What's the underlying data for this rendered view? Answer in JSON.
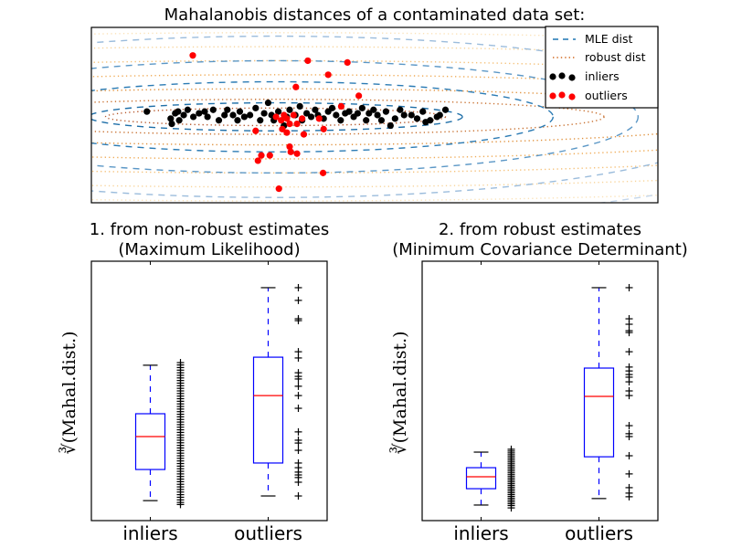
{
  "chart_data": [
    {
      "type": "scatter",
      "title": "Mahalanobis distances of a contaminated data set:",
      "xlabel": "",
      "ylabel": "",
      "xlim": [
        0,
        1
      ],
      "ylim": [
        0,
        1
      ],
      "grid": false,
      "legend": {
        "placement": "top-right",
        "entries": [
          {
            "label": "MLE dist",
            "style": "dashed-line",
            "color": "#1f77b4"
          },
          {
            "label": "robust dist",
            "style": "dotted-line",
            "color": "#d2691e"
          },
          {
            "label": "inliers",
            "style": "markers",
            "color": "#000000"
          },
          {
            "label": "outliers",
            "style": "markers",
            "color": "#ff0000"
          }
        ]
      },
      "contours": {
        "center": [
          0.325,
          0.49
        ],
        "mle_levels": [
          {
            "rx": 0.33,
            "ry": 0.08
          },
          {
            "rx": 0.49,
            "ry": 0.2
          },
          {
            "rx": 0.64,
            "ry": 0.32
          },
          {
            "rx": 0.82,
            "ry": 0.46
          },
          {
            "rx": 1.0,
            "ry": 0.6
          }
        ],
        "robust_levels": [
          {
            "rx": 0.3,
            "ry": 0.05
          },
          {
            "rx": 0.58,
            "ry": 0.1
          },
          {
            "rx": 0.85,
            "ry": 0.16
          },
          {
            "rx": 1.1,
            "ry": 0.24
          },
          {
            "rx": 1.35,
            "ry": 0.32
          },
          {
            "rx": 1.6,
            "ry": 0.4
          },
          {
            "rx": 1.85,
            "ry": 0.48
          },
          {
            "rx": 2.1,
            "ry": 0.56
          }
        ]
      },
      "series": [
        {
          "name": "inliers",
          "color": "#000000",
          "points": [
            [
              0.098,
              0.52
            ],
            [
              0.14,
              0.48
            ],
            [
              0.142,
              0.45
            ],
            [
              0.148,
              0.51
            ],
            [
              0.153,
              0.52
            ],
            [
              0.155,
              0.47
            ],
            [
              0.163,
              0.5
            ],
            [
              0.17,
              0.53
            ],
            [
              0.18,
              0.49
            ],
            [
              0.19,
              0.51
            ],
            [
              0.2,
              0.52
            ],
            [
              0.205,
              0.49
            ],
            [
              0.215,
              0.53
            ],
            [
              0.225,
              0.47
            ],
            [
              0.235,
              0.5
            ],
            [
              0.24,
              0.53
            ],
            [
              0.25,
              0.5
            ],
            [
              0.258,
              0.47
            ],
            [
              0.262,
              0.52
            ],
            [
              0.27,
              0.49
            ],
            [
              0.28,
              0.5
            ],
            [
              0.29,
              0.54
            ],
            [
              0.298,
              0.47
            ],
            [
              0.305,
              0.51
            ],
            [
              0.312,
              0.57
            ],
            [
              0.318,
              0.5
            ],
            [
              0.322,
              0.47
            ],
            [
              0.33,
              0.52
            ],
            [
              0.34,
              0.44
            ],
            [
              0.345,
              0.49
            ],
            [
              0.35,
              0.53
            ],
            [
              0.36,
              0.5
            ],
            [
              0.368,
              0.55
            ],
            [
              0.372,
              0.47
            ],
            [
              0.38,
              0.51
            ],
            [
              0.388,
              0.49
            ],
            [
              0.395,
              0.53
            ],
            [
              0.4,
              0.5
            ],
            [
              0.41,
              0.48
            ],
            [
              0.418,
              0.52
            ],
            [
              0.425,
              0.54
            ],
            [
              0.432,
              0.5
            ],
            [
              0.44,
              0.47
            ],
            [
              0.448,
              0.51
            ],
            [
              0.455,
              0.52
            ],
            [
              0.463,
              0.49
            ],
            [
              0.47,
              0.51
            ],
            [
              0.478,
              0.54
            ],
            [
              0.485,
              0.47
            ],
            [
              0.49,
              0.51
            ],
            [
              0.498,
              0.53
            ],
            [
              0.505,
              0.5
            ],
            [
              0.512,
              0.47
            ],
            [
              0.52,
              0.52
            ],
            [
              0.528,
              0.44
            ],
            [
              0.536,
              0.48
            ],
            [
              0.545,
              0.53
            ],
            [
              0.552,
              0.5
            ],
            [
              0.565,
              0.5
            ],
            [
              0.575,
              0.48
            ],
            [
              0.585,
              0.52
            ],
            [
              0.598,
              0.47
            ],
            [
              0.61,
              0.49
            ],
            [
              0.625,
              0.53
            ],
            [
              0.59,
              0.46
            ],
            [
              0.615,
              0.5
            ]
          ]
        },
        {
          "name": "outliers",
          "color": "#ff0000",
          "points": [
            [
              0.179,
              0.84
            ],
            [
              0.382,
              0.81
            ],
            [
              0.452,
              0.8
            ],
            [
              0.418,
              0.73
            ],
            [
              0.361,
              0.66
            ],
            [
              0.472,
              0.61
            ],
            [
              0.441,
              0.55
            ],
            [
              0.326,
              0.49
            ],
            [
              0.335,
              0.47
            ],
            [
              0.34,
              0.5
            ],
            [
              0.345,
              0.48
            ],
            [
              0.35,
              0.45
            ],
            [
              0.357,
              0.5
            ],
            [
              0.363,
              0.45
            ],
            [
              0.372,
              0.48
            ],
            [
              0.402,
              0.48
            ],
            [
              0.337,
              0.42
            ],
            [
              0.345,
              0.4
            ],
            [
              0.375,
              0.39
            ],
            [
              0.41,
              0.42
            ],
            [
              0.29,
              0.41
            ],
            [
              0.35,
              0.32
            ],
            [
              0.352,
              0.29
            ],
            [
              0.363,
              0.28
            ],
            [
              0.315,
              0.27
            ],
            [
              0.3,
              0.27
            ],
            [
              0.294,
              0.24
            ],
            [
              0.409,
              0.17
            ],
            [
              0.331,
              0.08
            ]
          ]
        }
      ]
    },
    {
      "type": "box",
      "title": "1. from non-robust estimates\n(Maximum Likelihood)",
      "title_lines": [
        "1. from non-robust estimates",
        "(Maximum Likelihood)"
      ],
      "ylabel": "∛(Mahal.dist.)",
      "categories": [
        "inliers",
        "outliers"
      ],
      "ylim": [
        0,
        1
      ],
      "grid": false,
      "boxes": [
        {
          "name": "inliers",
          "whisker_low": 0.077,
          "q1": 0.197,
          "median": 0.324,
          "q3": 0.412,
          "whisker_high": 0.599
        },
        {
          "name": "outliers",
          "whisker_low": 0.095,
          "q1": 0.222,
          "median": 0.482,
          "q3": 0.63,
          "whisker_high": 0.898
        }
      ],
      "strip_points": [
        {
          "name": "inliers",
          "values": [
            0.609,
            0.6,
            0.59,
            0.58,
            0.57,
            0.56,
            0.55,
            0.54,
            0.53,
            0.52,
            0.51,
            0.5,
            0.49,
            0.48,
            0.47,
            0.46,
            0.45,
            0.44,
            0.43,
            0.42,
            0.41,
            0.4,
            0.39,
            0.38,
            0.37,
            0.36,
            0.35,
            0.34,
            0.33,
            0.32,
            0.31,
            0.3,
            0.29,
            0.28,
            0.27,
            0.26,
            0.25,
            0.24,
            0.23,
            0.22,
            0.21,
            0.2,
            0.19,
            0.18,
            0.17,
            0.16,
            0.15,
            0.14,
            0.13,
            0.12,
            0.11,
            0.1,
            0.09,
            0.08,
            0.07,
            0.062
          ]
        },
        {
          "name": "outliers",
          "values": [
            0.898,
            0.849,
            0.778,
            0.771,
            0.651,
            0.627,
            0.57,
            0.556,
            0.546,
            0.518,
            0.482,
            0.433,
            0.342,
            0.31,
            0.299,
            0.271,
            0.222,
            0.204,
            0.187,
            0.176,
            0.166,
            0.148,
            0.095
          ]
        }
      ]
    },
    {
      "type": "box",
      "title": "2. from robust estimates\n(Minimum Covariance Determinant)",
      "title_lines": [
        "2. from robust estimates",
        "(Minimum Covariance Determinant)"
      ],
      "ylabel": "∛(Mahal.dist.)",
      "categories": [
        "inliers",
        "outliers"
      ],
      "ylim": [
        0,
        1
      ],
      "grid": false,
      "boxes": [
        {
          "name": "inliers",
          "whisker_low": 0.06,
          "q1": 0.123,
          "median": 0.169,
          "q3": 0.204,
          "whisker_high": 0.264
        },
        {
          "name": "outliers",
          "whisker_low": 0.085,
          "q1": 0.246,
          "median": 0.479,
          "q3": 0.588,
          "whisker_high": 0.898
        }
      ],
      "strip_points": [
        {
          "name": "inliers",
          "values": [
            0.275,
            0.268,
            0.261,
            0.254,
            0.247,
            0.24,
            0.233,
            0.226,
            0.219,
            0.212,
            0.205,
            0.198,
            0.191,
            0.184,
            0.177,
            0.17,
            0.163,
            0.156,
            0.149,
            0.142,
            0.135,
            0.128,
            0.121,
            0.114,
            0.107,
            0.1,
            0.093,
            0.086,
            0.079,
            0.072,
            0.065,
            0.058,
            0.049
          ]
        },
        {
          "name": "outliers",
          "values": [
            0.898,
            0.778,
            0.757,
            0.732,
            0.725,
            0.651,
            0.592,
            0.577,
            0.563,
            0.553,
            0.535,
            0.5,
            0.482,
            0.366,
            0.335,
            0.324,
            0.25,
            0.18,
            0.127,
            0.106,
            0.092
          ]
        }
      ]
    }
  ]
}
